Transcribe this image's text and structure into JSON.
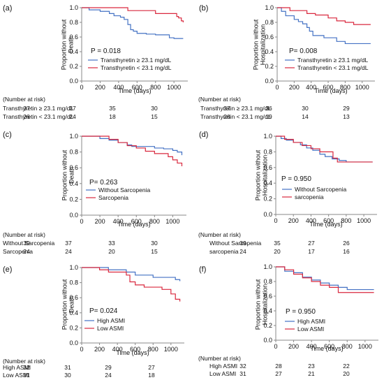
{
  "chart_data": [
    {
      "type": "line",
      "panel_label": "(a)",
      "ylabel": "Proportion without Death",
      "xlabel": "Time (days)",
      "xticks": [
        "0",
        "200",
        "400",
        "600",
        "800",
        "1000"
      ],
      "yticks": [
        "0.0",
        "0.2",
        "0.4",
        "0.6",
        "0.8",
        "1.0"
      ],
      "xlim": [
        0,
        1150
      ],
      "ylim": [
        0,
        1
      ],
      "pvalue": "P = 0.018",
      "risk_header": "(Number at risk)",
      "series": [
        {
          "name": "Transthyretin ≥ 23.1 mg/dL",
          "color": "#4472c4",
          "x": [
            0,
            80,
            200,
            300,
            350,
            420,
            460,
            500,
            530,
            560,
            600,
            700,
            800,
            950,
            1000,
            1100
          ],
          "y": [
            1.0,
            0.97,
            0.95,
            0.92,
            0.89,
            0.87,
            0.84,
            0.77,
            0.7,
            0.68,
            0.65,
            0.64,
            0.63,
            0.59,
            0.58,
            0.58
          ],
          "at_risk": [
            "37",
            "37",
            "35",
            "30"
          ]
        },
        {
          "name": "Transthyretin < 23.1 mg/dL",
          "color": "#d9283e",
          "x": [
            0,
            200,
            500,
            550,
            650,
            800,
            900,
            1000,
            1030,
            1050,
            1080,
            1100
          ],
          "y": [
            1.0,
            1.0,
            0.96,
            0.96,
            0.96,
            0.92,
            0.92,
            0.92,
            0.88,
            0.86,
            0.82,
            0.8
          ],
          "at_risk": [
            "26",
            "24",
            "18",
            "15"
          ]
        }
      ]
    },
    {
      "type": "line",
      "panel_label": "(b)",
      "ylabel": "Proportion without Hospitalization",
      "xlabel": "Time (days)",
      "xticks": [
        "0",
        "200",
        "400",
        "600",
        "800",
        "1000"
      ],
      "yticks": [
        "0.0",
        "0.2",
        "0.4",
        "0.6",
        "0.8",
        "1.0"
      ],
      "xlim": [
        0,
        1150
      ],
      "ylim": [
        0,
        1
      ],
      "pvalue": "P= 0.008",
      "risk_header": "(Number at risk)",
      "series": [
        {
          "name": "Transthyretin ≥ 23.1 mg/dL",
          "color": "#4472c4",
          "x": [
            0,
            50,
            100,
            200,
            250,
            300,
            350,
            380,
            420,
            500,
            550,
            650,
            700,
            800,
            900,
            1100
          ],
          "y": [
            1.0,
            0.95,
            0.89,
            0.84,
            0.81,
            0.78,
            0.73,
            0.68,
            0.62,
            0.62,
            0.59,
            0.59,
            0.54,
            0.51,
            0.51,
            0.51
          ],
          "at_risk": [
            "37",
            "36",
            "30",
            "29"
          ]
        },
        {
          "name": "Transthyretin < 23.1 mg/dL",
          "color": "#d9283e",
          "x": [
            0,
            150,
            250,
            350,
            450,
            600,
            700,
            800,
            900,
            1100
          ],
          "y": [
            1.0,
            0.96,
            0.96,
            0.92,
            0.9,
            0.86,
            0.82,
            0.8,
            0.77,
            0.77
          ],
          "at_risk": [
            "26",
            "19",
            "14",
            "13"
          ]
        }
      ]
    },
    {
      "type": "line",
      "panel_label": "(c)",
      "ylabel": "Proportion without Death",
      "xlabel": "Time (days)",
      "xticks": [
        "0",
        "200",
        "400",
        "600",
        "800",
        "1000"
      ],
      "yticks": [
        "0.0",
        "0.2",
        "0.4",
        "0.6",
        "0.8",
        "1.0"
      ],
      "xlim": [
        0,
        1150
      ],
      "ylim": [
        0,
        1
      ],
      "pvalue": "P= 0.263",
      "risk_header": "(Number at risk)",
      "series": [
        {
          "name": "Without Sarcopenia",
          "color": "#4472c4",
          "x": [
            0,
            200,
            300,
            400,
            500,
            550,
            800,
            900,
            1000,
            1050,
            1100
          ],
          "y": [
            1.0,
            0.97,
            0.95,
            0.92,
            0.89,
            0.87,
            0.85,
            0.84,
            0.82,
            0.8,
            0.76
          ],
          "at_risk": [
            "39",
            "37",
            "33",
            "30"
          ]
        },
        {
          "name": "Sarcopenia",
          "color": "#d9283e",
          "x": [
            0,
            300,
            400,
            500,
            600,
            700,
            800,
            950,
            1000,
            1050,
            1100
          ],
          "y": [
            1.0,
            0.96,
            0.92,
            0.88,
            0.85,
            0.81,
            0.78,
            0.74,
            0.7,
            0.66,
            0.62
          ],
          "at_risk": [
            "24",
            "24",
            "20",
            "15"
          ]
        }
      ]
    },
    {
      "type": "line",
      "panel_label": "(d)",
      "ylabel": "Proportion without Hospitalization",
      "xlabel": "Time (days)",
      "xticks": [
        "0",
        "200",
        "400",
        "600",
        "800",
        "1000"
      ],
      "yticks": [
        "0.0",
        "0.2",
        "0.4",
        "0.6",
        "0.8",
        "1.0"
      ],
      "xlim": [
        0,
        1150
      ],
      "ylim": [
        0,
        1
      ],
      "pvalue": "P = 0.950",
      "risk_header": "(Number at risk)",
      "series": [
        {
          "name": "Without Sarcopenia",
          "color": "#4472c4",
          "x": [
            0,
            60,
            120,
            200,
            280,
            350,
            420,
            500,
            560,
            640,
            720,
            800,
            1100
          ],
          "y": [
            1.0,
            0.97,
            0.95,
            0.92,
            0.89,
            0.85,
            0.82,
            0.77,
            0.74,
            0.71,
            0.69,
            0.67,
            0.67
          ],
          "at_risk": [
            "39",
            "35",
            "27",
            "26"
          ]
        },
        {
          "name": "sarcopenia",
          "color": "#d9283e",
          "x": [
            0,
            100,
            200,
            300,
            400,
            500,
            600,
            650,
            700,
            1100
          ],
          "y": [
            1.0,
            0.96,
            0.92,
            0.88,
            0.84,
            0.8,
            0.8,
            0.72,
            0.67,
            0.67
          ],
          "at_risk": [
            "24",
            "20",
            "17",
            "16"
          ]
        }
      ]
    },
    {
      "type": "line",
      "panel_label": "(e)",
      "ylabel": "Proportion without Death",
      "xlabel": "Time (days)",
      "xticks": [
        "0",
        "200",
        "400",
        "600",
        "800",
        "1000"
      ],
      "yticks": [
        "0.0",
        "0.2",
        "0.4",
        "0.6",
        "0.8",
        "1.0"
      ],
      "xlim": [
        0,
        1150
      ],
      "ylim": [
        0,
        1
      ],
      "pvalue": "P= 0.024",
      "risk_header": "(Number at risk)",
      "series": [
        {
          "name": "High ASMI",
          "color": "#4472c4",
          "x": [
            0,
            200,
            300,
            500,
            600,
            800,
            1050,
            1100
          ],
          "y": [
            1.0,
            1.0,
            0.97,
            0.94,
            0.9,
            0.87,
            0.84,
            0.82
          ],
          "at_risk": [
            "32",
            "31",
            "29",
            "27"
          ]
        },
        {
          "name": "Low ASMI",
          "color": "#d9283e",
          "x": [
            0,
            200,
            300,
            500,
            540,
            600,
            700,
            900,
            1000,
            1050,
            1100
          ],
          "y": [
            1.0,
            0.97,
            0.94,
            0.9,
            0.81,
            0.77,
            0.74,
            0.71,
            0.65,
            0.58,
            0.55
          ],
          "at_risk": [
            "31",
            "30",
            "24",
            "18"
          ]
        }
      ]
    },
    {
      "type": "line",
      "panel_label": "(f)",
      "ylabel": "Proportion without Hospitalization",
      "xlabel": "Time (days)",
      "xticks": [
        "0",
        "200",
        "400",
        "600",
        "800",
        "1000"
      ],
      "yticks": [
        "0.0",
        "0.2",
        "0.4",
        "0.6",
        "0.8",
        "1.0"
      ],
      "xlim": [
        0,
        1150
      ],
      "ylim": [
        0,
        1
      ],
      "pvalue": "P = 0.950",
      "risk_header": "(Number at risk)",
      "series": [
        {
          "name": "High ASMI",
          "color": "#4472c4",
          "x": [
            0,
            100,
            200,
            300,
            400,
            500,
            600,
            700,
            800,
            1100
          ],
          "y": [
            1.0,
            0.94,
            0.92,
            0.86,
            0.82,
            0.78,
            0.75,
            0.72,
            0.69,
            0.69
          ],
          "at_risk": [
            "32",
            "28",
            "23",
            "22"
          ]
        },
        {
          "name": "Low ASMI",
          "color": "#d9283e",
          "x": [
            0,
            100,
            200,
            300,
            400,
            500,
            600,
            700,
            1100
          ],
          "y": [
            1.0,
            0.96,
            0.9,
            0.85,
            0.8,
            0.75,
            0.72,
            0.65,
            0.65
          ],
          "at_risk": [
            "31",
            "27",
            "21",
            "20"
          ]
        }
      ]
    }
  ]
}
